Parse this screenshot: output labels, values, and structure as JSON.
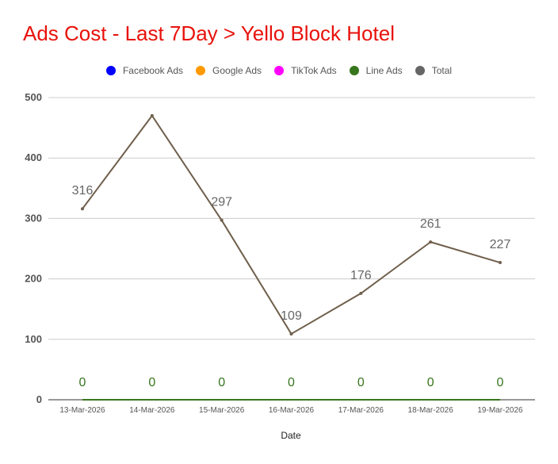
{
  "title": "Ads Cost - Last 7Day > Yello Block Hotel",
  "legend": [
    {
      "label": "Facebook Ads",
      "color": "#0000ff"
    },
    {
      "label": "Google Ads",
      "color": "#ff9900"
    },
    {
      "label": "TikTok Ads",
      "color": "#ff00ff"
    },
    {
      "label": "Line Ads",
      "color": "#38761d"
    },
    {
      "label": "Total",
      "color": "#666666"
    }
  ],
  "chart_data": {
    "type": "line",
    "title": "Ads Cost - Last 7Day > Yello Block Hotel",
    "xlabel": "Date",
    "ylabel": "",
    "ylim": [
      0,
      500
    ],
    "yticks": [
      0,
      100,
      200,
      300,
      400,
      500
    ],
    "grid": true,
    "legend_position": "top",
    "categories": [
      "13-Mar-2026",
      "14-Mar-2026",
      "15-Mar-2026",
      "16-Mar-2026",
      "17-Mar-2026",
      "18-Mar-2026",
      "19-Mar-2026"
    ],
    "series": [
      {
        "name": "Facebook Ads",
        "color": "#0000ff",
        "values": [
          0,
          0,
          0,
          0,
          0,
          0,
          0
        ],
        "data_labels": false
      },
      {
        "name": "Google Ads",
        "color": "#ff9900",
        "values": [
          0,
          0,
          0,
          0,
          0,
          0,
          0
        ],
        "data_labels": false
      },
      {
        "name": "TikTok Ads",
        "color": "#ff00ff",
        "values": [
          0,
          0,
          0,
          0,
          0,
          0,
          0
        ],
        "data_labels": false
      },
      {
        "name": "Line Ads",
        "color": "#38761d",
        "values": [
          0,
          0,
          0,
          0,
          0,
          0,
          0
        ],
        "data_labels": true
      },
      {
        "name": "Total",
        "color": "#6f5f4c",
        "values": [
          316,
          470,
          297,
          109,
          176,
          261,
          227
        ],
        "data_labels": true,
        "labels": [
          "316",
          "",
          "297",
          "109",
          "176",
          "261",
          "227"
        ]
      }
    ]
  }
}
